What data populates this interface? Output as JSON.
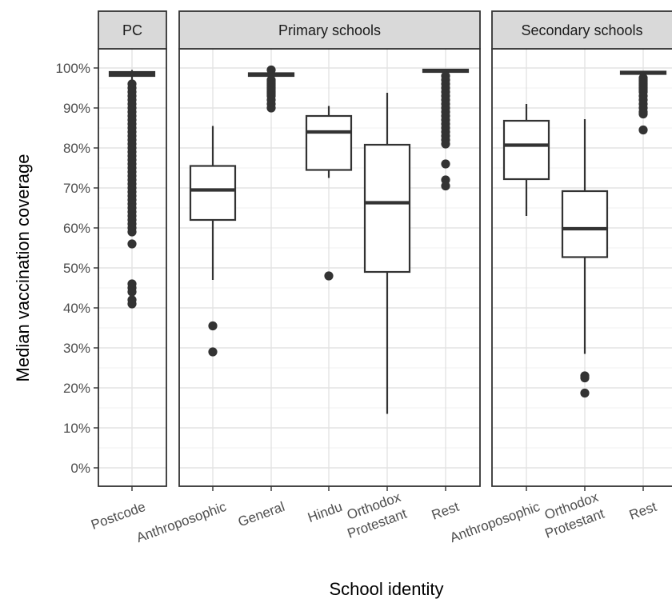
{
  "chart_data": {
    "type": "boxplot",
    "xlabel": "School identity",
    "ylabel": "Median vaccination coverage",
    "ylim": [
      0,
      1
    ],
    "y_ticks": [
      "0%",
      "10%",
      "20%",
      "30%",
      "40%",
      "50%",
      "60%",
      "70%",
      "80%",
      "90%",
      "100%"
    ],
    "grid": true,
    "facets": [
      {
        "label": "PC",
        "groups": [
          {
            "category": "Postcode",
            "q1": 0.98,
            "median": 0.985,
            "q3": 0.99,
            "whisker_low": 0.97,
            "whisker_high": 0.995,
            "outliers": [
              0.96,
              0.95,
              0.94,
              0.93,
              0.92,
              0.91,
              0.9,
              0.89,
              0.88,
              0.87,
              0.86,
              0.85,
              0.84,
              0.83,
              0.82,
              0.81,
              0.8,
              0.79,
              0.78,
              0.77,
              0.76,
              0.75,
              0.74,
              0.73,
              0.72,
              0.71,
              0.7,
              0.69,
              0.68,
              0.67,
              0.66,
              0.65,
              0.64,
              0.63,
              0.62,
              0.61,
              0.6,
              0.59,
              0.56,
              0.46,
              0.45,
              0.44,
              0.42,
              0.41
            ]
          }
        ]
      },
      {
        "label": "Primary schools",
        "groups": [
          {
            "category": "Anthroposophic",
            "q1": 0.62,
            "median": 0.695,
            "q3": 0.755,
            "whisker_low": 0.47,
            "whisker_high": 0.855,
            "outliers": [
              0.355,
              0.29
            ]
          },
          {
            "category": "General",
            "q1": 0.98,
            "median": 0.983,
            "q3": 0.987,
            "whisker_low": 0.975,
            "whisker_high": 0.99,
            "outliers": [
              0.995,
              0.97,
              0.965,
              0.96,
              0.955,
              0.95,
              0.945,
              0.94,
              0.935,
              0.93,
              0.92,
              0.91,
              0.9
            ]
          },
          {
            "category": "Hindu",
            "q1": 0.745,
            "median": 0.84,
            "q3": 0.88,
            "whisker_low": 0.725,
            "whisker_high": 0.905,
            "outliers": [
              0.48
            ]
          },
          {
            "category": "Orthodox Protestant",
            "q1": 0.49,
            "median": 0.663,
            "q3": 0.808,
            "whisker_low": 0.135,
            "whisker_high": 0.938,
            "outliers": []
          },
          {
            "category": "Rest",
            "q1": 0.99,
            "median": 0.993,
            "q3": 0.996,
            "whisker_low": 0.985,
            "whisker_high": 0.997,
            "outliers": [
              0.98,
              0.97,
              0.96,
              0.95,
              0.94,
              0.93,
              0.92,
              0.91,
              0.9,
              0.89,
              0.88,
              0.87,
              0.86,
              0.85,
              0.84,
              0.83,
              0.82,
              0.81,
              0.76,
              0.72,
              0.705
            ]
          }
        ]
      },
      {
        "label": "Secondary schools",
        "groups": [
          {
            "category": "Anthroposophic",
            "q1": 0.722,
            "median": 0.807,
            "q3": 0.868,
            "whisker_low": 0.63,
            "whisker_high": 0.91,
            "outliers": []
          },
          {
            "category": "Orthodox Protestant",
            "q1": 0.527,
            "median": 0.598,
            "q3": 0.692,
            "whisker_low": 0.285,
            "whisker_high": 0.872,
            "outliers": [
              0.23,
              0.225,
              0.187
            ]
          },
          {
            "category": "Rest",
            "q1": 0.985,
            "median": 0.988,
            "q3": 0.991,
            "whisker_low": 0.98,
            "whisker_high": 0.993,
            "outliers": [
              0.975,
              0.97,
              0.965,
              0.96,
              0.955,
              0.95,
              0.945,
              0.94,
              0.93,
              0.92,
              0.91,
              0.9,
              0.89,
              0.885,
              0.845
            ]
          }
        ]
      }
    ]
  }
}
